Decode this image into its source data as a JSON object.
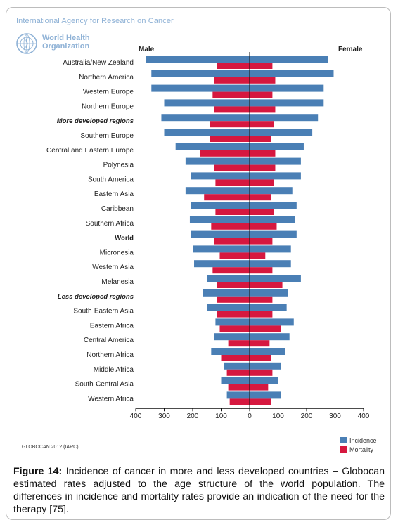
{
  "header": {
    "agency": "International Agency for Research on Cancer",
    "who_line1": "World Health",
    "who_line2": "Organization"
  },
  "labels": {
    "male": "Male",
    "female": "Female"
  },
  "footer": {
    "source": "GLOBOCAN 2012 (IARC)"
  },
  "caption": {
    "figure_label": "Figure 14:",
    "text": " Incidence of cancer in more and less developed countries – Globocan estimated rates adjusted to the age structure of the world population. The differences in incidence and mortality rates provide an indication of the need for the therapy [75]."
  },
  "colors": {
    "incidence": "#4a7fb5",
    "mortality": "#d6183f",
    "axis": "#111111"
  },
  "chart_data": {
    "type": "bar",
    "orientation": "horizontal-butterfly",
    "categories": [
      "Australia/New Zealand",
      "Northern America",
      "Western Europe",
      "Northern Europe",
      "More developed regions",
      "Southern Europe",
      "Central and Eastern Europe",
      "Polynesia",
      "South America",
      "Eastern Asia",
      "Caribbean",
      "Southern Africa",
      "World",
      "Micronesia",
      "Western Asia",
      "Melanesia",
      "Less developed regions",
      "South-Eastern Asia",
      "Eastern Africa",
      "Central America",
      "Northern Africa",
      "Middle Africa",
      "South-Central Asia",
      "Western Africa"
    ],
    "emphasis": {
      "More developed regions": "bold-italic",
      "World": "bold",
      "Less developed regions": "bold-italic"
    },
    "series": [
      {
        "name": "Incidence",
        "side": "male",
        "values": [
          365,
          345,
          345,
          300,
          310,
          300,
          260,
          225,
          205,
          225,
          205,
          210,
          205,
          200,
          195,
          150,
          165,
          150,
          120,
          125,
          135,
          90,
          100,
          80
        ]
      },
      {
        "name": "Mortality",
        "side": "male",
        "values": [
          115,
          125,
          130,
          125,
          140,
          140,
          175,
          125,
          120,
          160,
          120,
          135,
          125,
          105,
          130,
          115,
          115,
          115,
          105,
          75,
          100,
          80,
          75,
          70
        ]
      },
      {
        "name": "Incidence",
        "side": "female",
        "values": [
          275,
          295,
          260,
          260,
          240,
          220,
          190,
          180,
          180,
          150,
          165,
          160,
          165,
          145,
          145,
          180,
          135,
          130,
          155,
          140,
          125,
          110,
          100,
          110
        ]
      },
      {
        "name": "Mortality",
        "side": "female",
        "values": [
          80,
          90,
          80,
          90,
          85,
          75,
          90,
          90,
          85,
          75,
          85,
          95,
          80,
          55,
          80,
          115,
          80,
          80,
          110,
          70,
          75,
          80,
          65,
          75
        ]
      }
    ],
    "xticks": [
      "400",
      "300",
      "200",
      "100",
      "0",
      "100",
      "200",
      "300",
      "400"
    ],
    "xlim": [
      -400,
      400
    ],
    "legend": {
      "position": "bottom-right",
      "entries": [
        "Incidence",
        "Mortality"
      ]
    }
  }
}
